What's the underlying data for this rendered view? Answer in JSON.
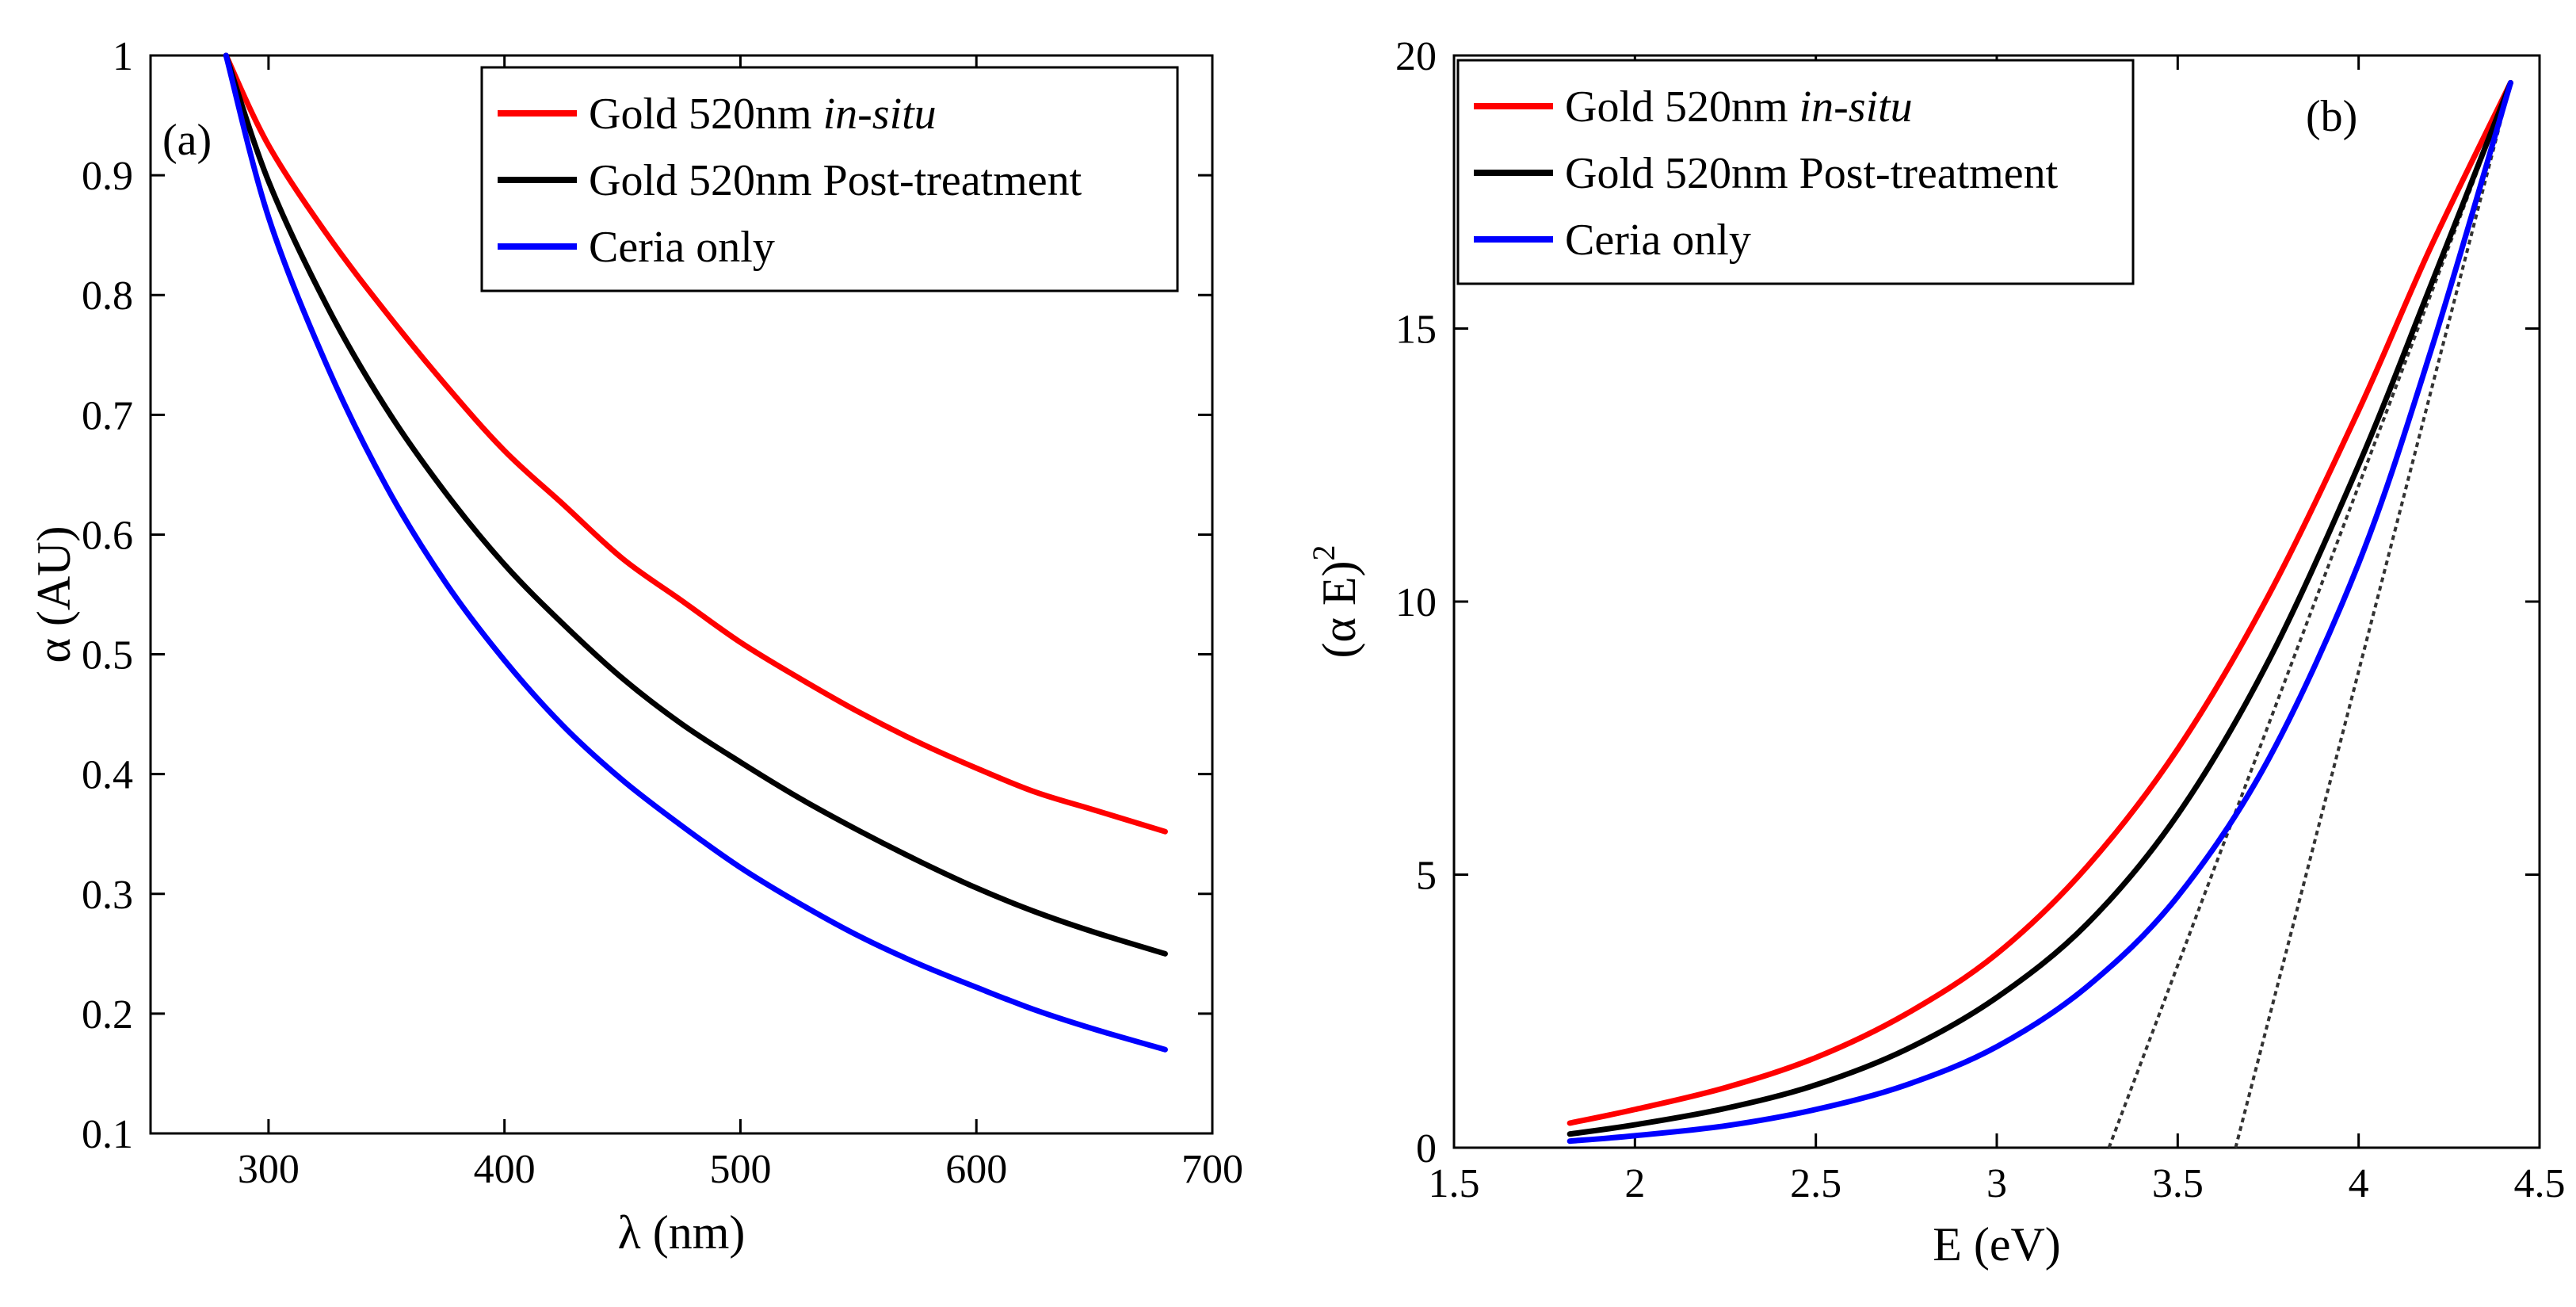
{
  "chart_data": [
    {
      "type": "line",
      "panel_tag": "(a)",
      "xlabel": "λ (nm)",
      "ylabel": "α (AU)",
      "xlim": [
        250,
        700
      ],
      "ylim": [
        0.1,
        1.0
      ],
      "xticks": [
        300,
        400,
        500,
        600,
        700
      ],
      "xtick_labels": [
        "300",
        "400",
        "500",
        "600",
        "700"
      ],
      "yticks": [
        0.1,
        0.2,
        0.3,
        0.4,
        0.5,
        0.6,
        0.7,
        0.8,
        0.9,
        1.0
      ],
      "ytick_labels": [
        "0.1",
        "0.2",
        "0.3",
        "0.4",
        "0.5",
        "0.6",
        "0.7",
        "0.8",
        "0.9",
        "1"
      ],
      "grid": false,
      "legend_position": "top-right",
      "series": [
        {
          "name_main": "Gold 520nm ",
          "name_italic": "in-situ",
          "color": "#ff0000",
          "x": [
            282,
            300,
            325,
            350,
            375,
            400,
            425,
            450,
            475,
            500,
            525,
            550,
            575,
            600,
            625,
            650,
            680
          ],
          "y": [
            1.0,
            0.925,
            0.85,
            0.785,
            0.725,
            0.67,
            0.625,
            0.58,
            0.545,
            0.51,
            0.48,
            0.452,
            0.427,
            0.405,
            0.385,
            0.37,
            0.352
          ]
        },
        {
          "name_main": "Gold 520nm Post-treatment",
          "name_italic": "",
          "color": "#000000",
          "x": [
            282,
            300,
            325,
            350,
            375,
            400,
            425,
            450,
            475,
            500,
            525,
            550,
            575,
            600,
            625,
            650,
            680
          ],
          "y": [
            1.0,
            0.895,
            0.79,
            0.705,
            0.635,
            0.575,
            0.525,
            0.48,
            0.442,
            0.41,
            0.38,
            0.353,
            0.328,
            0.305,
            0.285,
            0.268,
            0.25
          ]
        },
        {
          "name_main": "Ceria only",
          "name_italic": "",
          "color": "#0000ff",
          "x": [
            282,
            300,
            325,
            350,
            375,
            400,
            425,
            450,
            475,
            500,
            525,
            550,
            575,
            600,
            625,
            650,
            680
          ],
          "y": [
            1.0,
            0.865,
            0.74,
            0.64,
            0.56,
            0.495,
            0.44,
            0.395,
            0.357,
            0.322,
            0.292,
            0.265,
            0.242,
            0.222,
            0.203,
            0.187,
            0.17
          ]
        }
      ]
    },
    {
      "type": "line",
      "panel_tag": "(b)",
      "xlabel": "E (eV)",
      "ylabel_main": "(α E)",
      "ylabel_sup": "2",
      "xlim": [
        1.5,
        4.5
      ],
      "ylim": [
        0,
        20
      ],
      "xticks": [
        1.5,
        2,
        2.5,
        3,
        3.5,
        4,
        4.5
      ],
      "xtick_labels": [
        "1.5",
        "2",
        "2.5",
        "3",
        "3.5",
        "4",
        "4.5"
      ],
      "yticks": [
        0,
        5,
        10,
        15,
        20
      ],
      "ytick_labels": [
        "0",
        "5",
        "10",
        "15",
        "20"
      ],
      "grid": false,
      "legend_position": "top-left",
      "series": [
        {
          "name_main": "Gold 520nm ",
          "name_italic": "in-situ",
          "color": "#ff0000",
          "x": [
            1.82,
            2.0,
            2.25,
            2.5,
            2.75,
            3.0,
            3.25,
            3.5,
            3.75,
            4.0,
            4.2,
            4.42
          ],
          "y": [
            0.45,
            0.7,
            1.1,
            1.65,
            2.45,
            3.55,
            5.15,
            7.3,
            10.1,
            13.5,
            16.5,
            19.5
          ]
        },
        {
          "name_main": "Gold 520nm Post-treatment",
          "name_italic": "",
          "color": "#000000",
          "x": [
            1.82,
            2.0,
            2.25,
            2.5,
            2.75,
            3.0,
            3.25,
            3.5,
            3.75,
            4.0,
            4.2,
            4.42
          ],
          "y": [
            0.25,
            0.42,
            0.72,
            1.15,
            1.8,
            2.75,
            4.1,
            6.1,
            8.9,
            12.5,
            15.8,
            19.5
          ]
        },
        {
          "name_main": "Ceria only",
          "name_italic": "",
          "color": "#0000ff",
          "x": [
            1.82,
            2.0,
            2.25,
            2.5,
            2.75,
            3.0,
            3.25,
            3.5,
            3.75,
            4.0,
            4.2,
            4.42
          ],
          "y": [
            0.12,
            0.22,
            0.4,
            0.7,
            1.15,
            1.85,
            2.95,
            4.6,
            7.1,
            10.7,
            14.6,
            19.5
          ]
        }
      ],
      "tangents": [
        {
          "x": [
            3.31,
            4.42
          ],
          "y": [
            0,
            19.5
          ],
          "color": "#333333"
        },
        {
          "x": [
            3.66,
            4.42
          ],
          "y": [
            0,
            19.5
          ],
          "color": "#333333"
        }
      ]
    }
  ]
}
